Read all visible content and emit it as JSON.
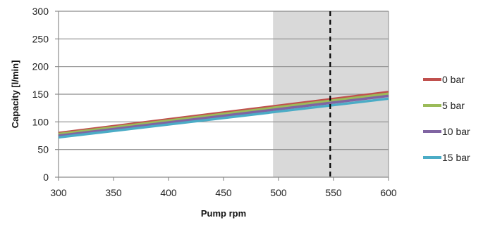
{
  "chart_data": {
    "type": "line",
    "title": "",
    "xlabel": "Pump rpm",
    "ylabel": "Capacity [l/min]",
    "xlim": [
      300,
      600
    ],
    "ylim": [
      0,
      300
    ],
    "x_ticks": [
      "300",
      "350",
      "400",
      "450",
      "500",
      "550",
      "600"
    ],
    "y_ticks": [
      "0",
      "50",
      "100",
      "150",
      "200",
      "250",
      "300"
    ],
    "grid": "horizontal",
    "legend_position": "right",
    "shaded_region": {
      "x_start": 495,
      "x_end": 600,
      "color": "#d9d9d9"
    },
    "marker_line": {
      "x": 547,
      "style": "dashed",
      "color": "#000000"
    },
    "series": [
      {
        "name": "0 bar",
        "color": "#c0504d",
        "x": [
          300,
          600
        ],
        "y": [
          80,
          154
        ]
      },
      {
        "name": "5 bar",
        "color": "#9bbb59",
        "x": [
          300,
          600
        ],
        "y": [
          78,
          151
        ]
      },
      {
        "name": "10 bar",
        "color": "#8064a2",
        "x": [
          300,
          600
        ],
        "y": [
          75,
          147
        ]
      },
      {
        "name": "15 bar",
        "color": "#4bacc6",
        "x": [
          300,
          600
        ],
        "y": [
          72,
          142
        ]
      }
    ]
  }
}
